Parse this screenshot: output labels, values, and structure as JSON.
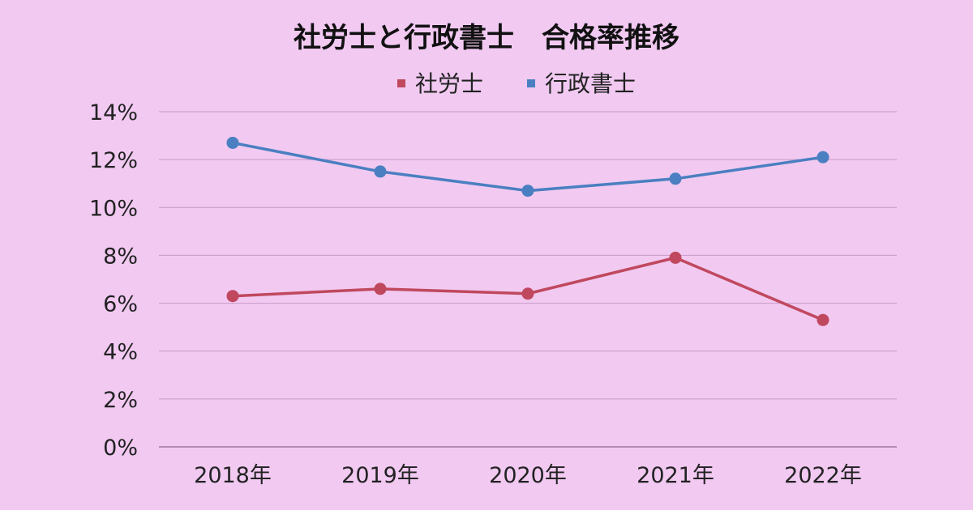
{
  "chart_data": {
    "type": "line",
    "title": "社労士と行政書士　合格率推移",
    "categories": [
      "2018年",
      "2019年",
      "2020年",
      "2021年",
      "2022年"
    ],
    "y_ticks": [
      "0%",
      "2%",
      "4%",
      "6%",
      "8%",
      "10%",
      "12%",
      "14%"
    ],
    "ylim": [
      0,
      14
    ],
    "y_unit": "%",
    "grid": true,
    "legend_position": "top-center",
    "series": [
      {
        "name": "社労士",
        "color": "#c0485e",
        "values": [
          6.3,
          6.6,
          6.4,
          7.9,
          5.3
        ]
      },
      {
        "name": "行政書士",
        "color": "#4a7fc1",
        "values": [
          12.7,
          11.5,
          10.7,
          11.2,
          12.1
        ]
      }
    ]
  }
}
